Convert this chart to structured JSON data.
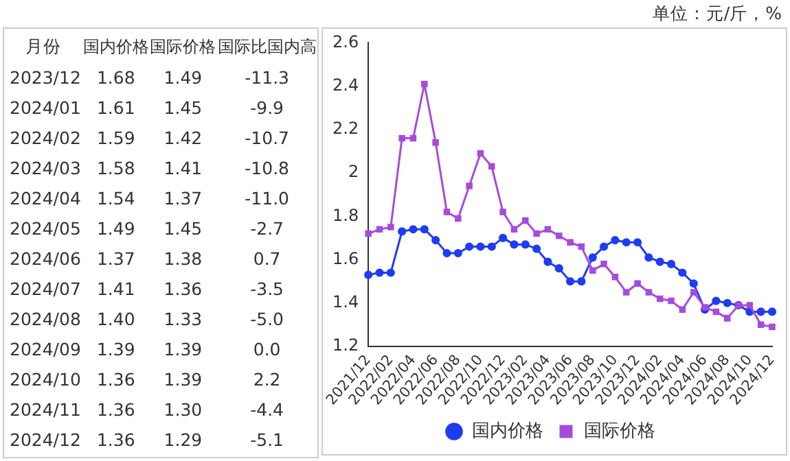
{
  "chart_data": [
    {
      "type": "other",
      "ylabel": "月份",
      "categories": [
        "国内价格",
        "国际价格",
        "国际比国内高"
      ],
      "y_categories": [
        "2023/12",
        "2024/01",
        "2024/02",
        "2024/03",
        "2024/04",
        "2024/05",
        "2024/06",
        "2024/07",
        "2024/08",
        "2024/09",
        "2024/10",
        "2024/11",
        "2024/12"
      ],
      "cell_labels": [
        [
          "1.68",
          "1.49",
          "-11.3"
        ],
        [
          "1.61",
          "1.45",
          "-9.9"
        ],
        [
          "1.59",
          "1.42",
          "-10.7"
        ],
        [
          "1.58",
          "1.41",
          "-10.8"
        ],
        [
          "1.54",
          "1.37",
          "-11.0"
        ],
        [
          "1.49",
          "1.45",
          "-2.7"
        ],
        [
          "1.37",
          "1.38",
          "0.7"
        ],
        [
          "1.41",
          "1.36",
          "-3.5"
        ],
        [
          "1.40",
          "1.33",
          "-5.0"
        ],
        [
          "1.39",
          "1.39",
          "0.0"
        ],
        [
          "1.36",
          "1.39",
          "2.2"
        ],
        [
          "1.36",
          "1.30",
          "-4.4"
        ],
        [
          "1.36",
          "1.29",
          "-5.1"
        ]
      ]
    },
    {
      "type": "line",
      "annotations": [
        "单位：元/斤，%"
      ],
      "categories": [
        "2021/12",
        null,
        "2022/02",
        null,
        "2022/04",
        null,
        "2022/06",
        null,
        "2022/08",
        null,
        "2022/10",
        null,
        "2022/12",
        null,
        "2023/02",
        null,
        "2023/04",
        null,
        "2023/06",
        null,
        "2023/08",
        null,
        "2023/10",
        null,
        "2023/12",
        null,
        "2024/02",
        null,
        "2024/04",
        null,
        "2024/06",
        null,
        "2024/08",
        null,
        "2024/10",
        null,
        "2024/12"
      ],
      "series": [
        {
          "name": "国内价格",
          "color": "#1f3cf2",
          "marker": "circle",
          "values": [
            1.53,
            1.54,
            1.54,
            1.73,
            1.74,
            1.74,
            1.69,
            1.63,
            1.63,
            1.66,
            1.66,
            1.66,
            1.7,
            1.67,
            1.67,
            1.65,
            1.59,
            1.56,
            1.5,
            1.5,
            1.61,
            1.66,
            1.69,
            1.68,
            1.68,
            1.61,
            1.59,
            1.58,
            1.54,
            1.49,
            1.37,
            1.41,
            1.4,
            1.39,
            1.36,
            1.36,
            1.36
          ]
        },
        {
          "name": "国际价格",
          "color": "#a64bdc",
          "marker": "square",
          "values": [
            1.72,
            1.74,
            1.75,
            2.16,
            2.16,
            2.41,
            2.14,
            1.82,
            1.79,
            1.94,
            2.09,
            2.03,
            1.82,
            1.74,
            1.78,
            1.72,
            1.74,
            1.71,
            1.68,
            1.66,
            1.55,
            1.58,
            1.52,
            1.45,
            1.49,
            1.45,
            1.42,
            1.41,
            1.37,
            1.45,
            1.38,
            1.36,
            1.33,
            1.39,
            1.39,
            1.3,
            1.29
          ]
        }
      ],
      "ylim": [
        1.2,
        2.6
      ],
      "yticks": [
        1.2,
        1.4,
        1.6,
        1.8,
        2,
        2.2,
        2.4,
        2.6
      ],
      "grid": false,
      "legend": "bottom"
    }
  ]
}
